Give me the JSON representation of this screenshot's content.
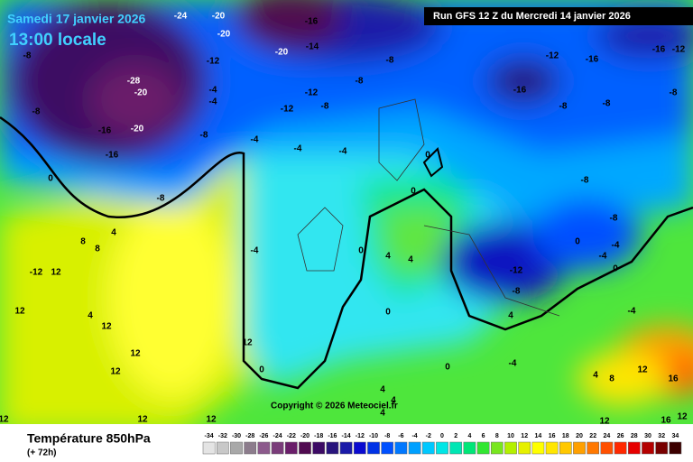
{
  "header": {
    "date": "Samedi 17 janvier 2026",
    "time": "13:00 locale",
    "run": "Run GFS 12 Z du Mercredi 14 janvier 2026"
  },
  "footer": {
    "title": "Température 850hPa",
    "lead": "(+ 72h)",
    "copyright": "Copyright © 2026 Meteociel.fr"
  },
  "scale": {
    "values": [
      -34,
      -32,
      -30,
      -28,
      -26,
      -24,
      -22,
      -20,
      -18,
      -16,
      -14,
      -12,
      -10,
      -8,
      -6,
      -4,
      -2,
      0,
      2,
      4,
      6,
      8,
      10,
      12,
      14,
      16,
      18,
      20,
      22,
      24,
      26,
      28,
      30,
      32,
      34
    ],
    "colors": [
      "#e4e4e4",
      "#c8c8c8",
      "#a8a8a8",
      "#8c7c8c",
      "#8c5a8c",
      "#7a3c7a",
      "#6a1e6a",
      "#500a50",
      "#3c0a64",
      "#28147c",
      "#1a1aa8",
      "#0a0ad0",
      "#0032e6",
      "#0050ff",
      "#0078ff",
      "#00a0ff",
      "#00c8ff",
      "#00e6e6",
      "#00e6b4",
      "#00e678",
      "#32e632",
      "#78e61e",
      "#b4f000",
      "#e6f000",
      "#ffff00",
      "#ffe600",
      "#ffc800",
      "#ffa000",
      "#ff7800",
      "#ff5000",
      "#ff2800",
      "#e60000",
      "#b40000",
      "#780000",
      "#3c0000"
    ]
  },
  "map": {
    "labels": [
      -24,
      -20,
      -16,
      -14,
      -20,
      -12,
      -20,
      -8,
      -28,
      -20,
      -4,
      -4,
      -12,
      -12,
      -8,
      -8,
      -8,
      -12,
      -16,
      -16,
      -12,
      -16,
      -8,
      -8,
      -8,
      -8,
      -16,
      -20,
      -16,
      -8,
      -4,
      -4,
      -4,
      -8,
      0,
      0,
      0,
      -8,
      -8,
      0,
      -4,
      -4,
      0,
      -12,
      -8,
      -4,
      0,
      4,
      4,
      8,
      8,
      4,
      -12,
      12,
      12,
      12,
      4,
      12,
      12,
      12,
      0,
      0,
      0,
      -4,
      -4,
      4,
      8,
      12,
      16,
      16,
      12,
      12,
      12,
      12,
      4,
      4,
      4,
      4,
      12
    ]
  }
}
